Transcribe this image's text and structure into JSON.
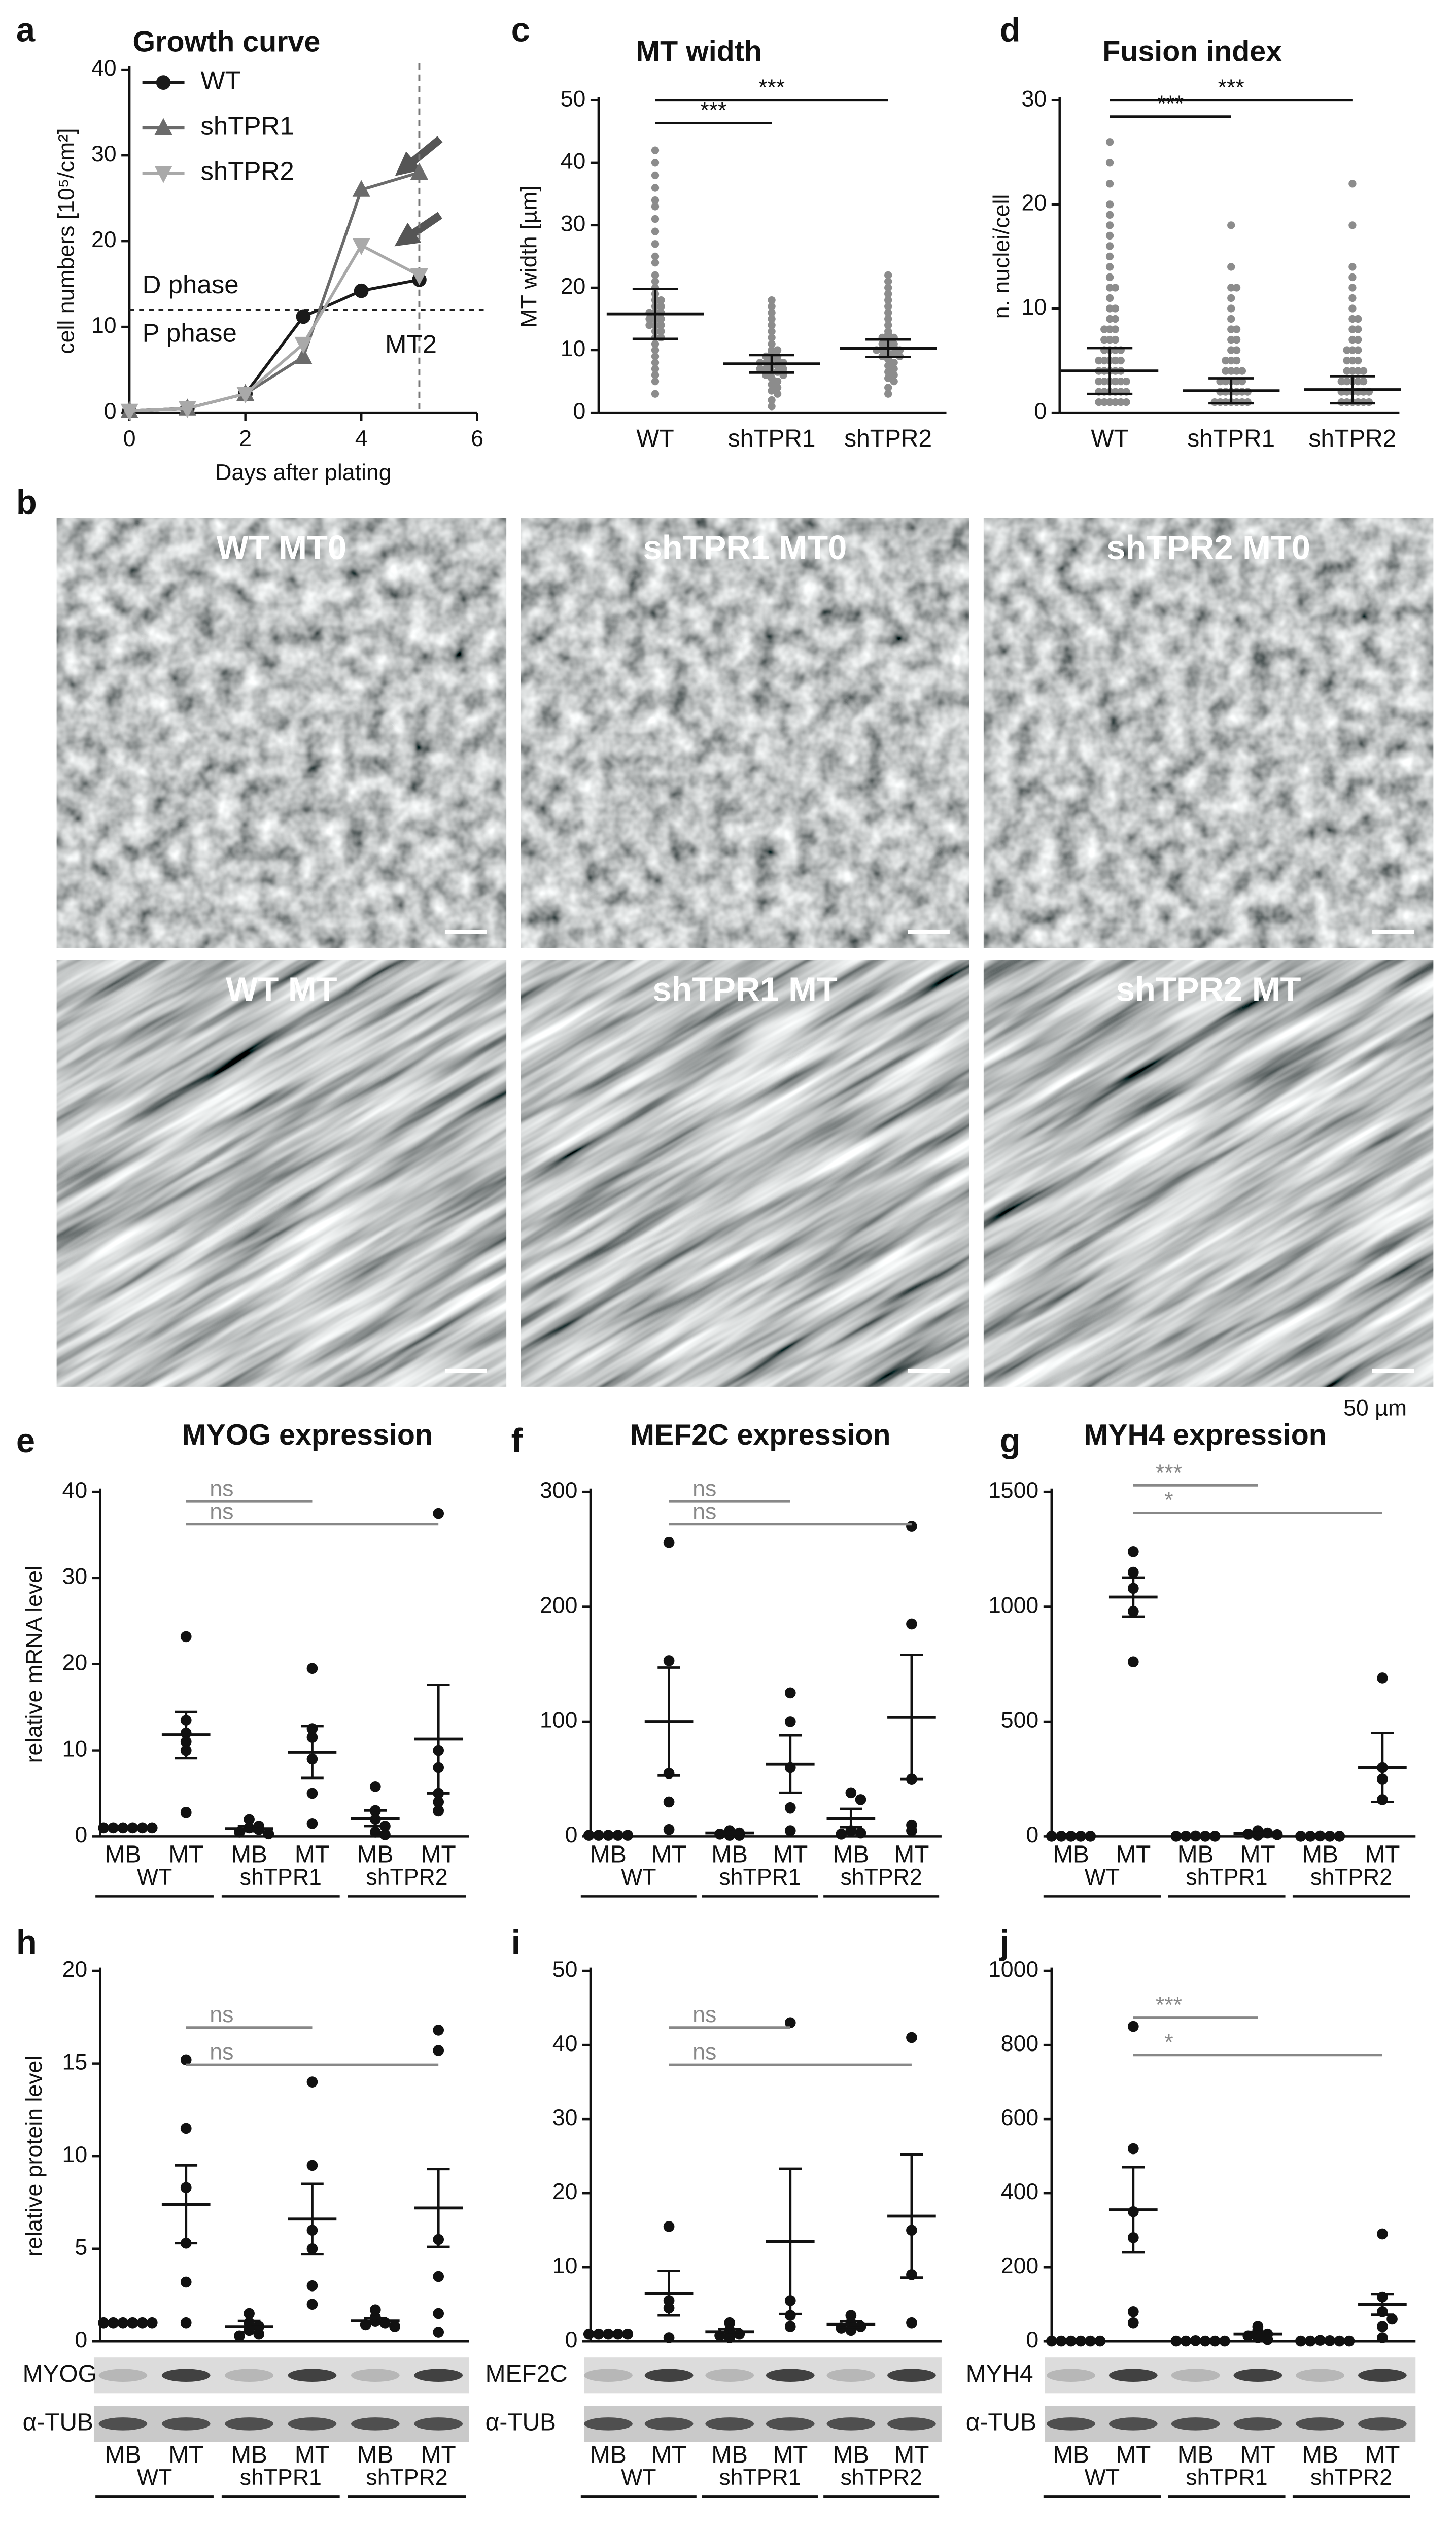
{
  "figure": {
    "panel_letters": [
      "a",
      "b",
      "c",
      "d",
      "e",
      "f",
      "g",
      "h",
      "i",
      "j"
    ],
    "micrographs": [
      "WT MT0",
      "shTPR1 MT0",
      "shTPR2 MT0",
      "WT MT",
      "shTPR1 MT",
      "shTPR2 MT"
    ],
    "scale_bar": "50 µm"
  },
  "chart_data": [
    {
      "type": "line",
      "title": "Growth curve",
      "xlabel": "Days after plating",
      "ylabel": "cell numbers [10⁵/cm²]",
      "x": [
        0,
        1,
        2,
        3,
        4,
        5
      ],
      "series": [
        {
          "name": "WT",
          "color": "#1a1a1a",
          "marker": "circle",
          "values": [
            0.2,
            0.5,
            2.2,
            11.2,
            14.2,
            15.5
          ]
        },
        {
          "name": "shTPR1",
          "color": "#6b6b6b",
          "marker": "triangle-up",
          "values": [
            0.2,
            0.5,
            2.2,
            6.5,
            26,
            28
          ]
        },
        {
          "name": "shTPR2",
          "color": "#a9a9a9",
          "marker": "triangle-down",
          "values": [
            0.2,
            0.5,
            2.2,
            8,
            19.5,
            16
          ]
        }
      ],
      "xlim": [
        0,
        6
      ],
      "xticks": [
        0,
        2,
        4,
        6
      ],
      "ylim": [
        0,
        40
      ],
      "yticks": [
        0,
        10,
        20,
        30,
        40
      ],
      "hline": 12,
      "vline": 5,
      "annotations": [
        "D phase",
        "P phase",
        "MT2"
      ]
    },
    {
      "type": "dot",
      "title": "MT width",
      "ylabel": "MT width [µm]",
      "categories": [
        "WT",
        "shTPR1",
        "shTPR2"
      ],
      "points": [
        [
          42,
          40,
          38,
          36,
          34,
          33,
          31,
          29,
          27,
          25,
          24,
          22,
          21,
          20,
          19,
          18,
          18,
          17,
          17,
          16,
          16,
          16,
          15,
          15,
          15,
          14,
          14,
          14,
          13,
          13,
          12,
          12,
          11,
          10,
          9,
          8,
          7,
          6,
          5,
          3
        ],
        [
          18,
          17,
          16,
          15,
          14,
          13,
          12,
          11,
          10,
          10,
          9.5,
          9,
          9,
          8.5,
          8.5,
          8,
          8,
          8,
          7.5,
          7.5,
          7,
          7,
          7,
          6.5,
          6.5,
          6,
          6,
          5.5,
          5,
          4.5,
          4,
          3.5,
          3,
          2,
          1
        ],
        [
          22,
          21,
          20,
          19,
          18,
          17,
          16,
          15,
          14,
          13,
          12.5,
          12,
          12,
          11.5,
          11,
          11,
          10.5,
          10.5,
          10,
          10,
          10,
          9.5,
          9.5,
          9,
          9,
          8.5,
          8,
          7.5,
          7,
          6.5,
          6,
          5.5,
          5,
          4,
          3
        ]
      ],
      "means": [
        15.8,
        7.8,
        10.3
      ],
      "errors": [
        4,
        1.4,
        1.4
      ],
      "color": "#8c8c8c",
      "ylim": [
        0,
        50
      ],
      "yticks": [
        0,
        10,
        20,
        30,
        40,
        50
      ],
      "significance": [
        "***",
        "***"
      ],
      "significance_color": "#111"
    },
    {
      "type": "dot",
      "title": "Fusion index",
      "ylabel": "n. nuclei/cell",
      "categories": [
        "WT",
        "shTPR1",
        "shTPR2"
      ],
      "points": [
        [
          26,
          24,
          22,
          20,
          19,
          18,
          17,
          16,
          15,
          14,
          13,
          12,
          12,
          11,
          10,
          10,
          9,
          9,
          8,
          8,
          8,
          7,
          7,
          7,
          6,
          6,
          6,
          6,
          5,
          5,
          5,
          5,
          5,
          4,
          4,
          4,
          4,
          4,
          3,
          3,
          3,
          3,
          3,
          3,
          2,
          2,
          2,
          2,
          2,
          2,
          1,
          1,
          1,
          1,
          1,
          1
        ],
        [
          18,
          14,
          12,
          12,
          11,
          10,
          9,
          8,
          8,
          7,
          7,
          6,
          6,
          5,
          5,
          5,
          4,
          4,
          4,
          4,
          3,
          3,
          3,
          3,
          3,
          2,
          2,
          2,
          2,
          2,
          2,
          1,
          1,
          1,
          1,
          1,
          1,
          1
        ],
        [
          22,
          18,
          14,
          13,
          12,
          11,
          10,
          9,
          9,
          8,
          8,
          7,
          7,
          6,
          6,
          6,
          5,
          5,
          5,
          4,
          4,
          4,
          4,
          3,
          3,
          3,
          3,
          3,
          2,
          2,
          2,
          2,
          2,
          2,
          1,
          1,
          1,
          1,
          1,
          1
        ]
      ],
      "means": [
        4,
        2.1,
        2.2
      ],
      "errors": [
        2.2,
        1.2,
        1.3
      ],
      "color": "#8c8c8c",
      "ylim": [
        0,
        30
      ],
      "yticks": [
        0,
        10,
        20,
        30
      ],
      "significance": [
        "***",
        "***"
      ],
      "significance_color": "#111"
    },
    {
      "type": "dot",
      "title": "MYOG expression",
      "ylabel": "relative mRNA level",
      "categories": [
        "MB",
        "MT",
        "MB",
        "MT",
        "MB",
        "MT"
      ],
      "groups": [
        "WT",
        "shTPR1",
        "shTPR2"
      ],
      "points": [
        [
          1,
          1,
          1,
          1,
          1,
          1
        ],
        [
          23.2,
          13.5,
          12,
          11,
          10,
          2.8
        ],
        [
          2,
          1.2,
          1,
          0.8,
          0.5,
          0.3
        ],
        [
          19.5,
          12.5,
          11.5,
          9,
          5,
          1.5
        ],
        [
          5.8,
          3,
          2,
          1.2,
          0.5,
          0.2
        ],
        [
          37.5,
          10,
          8,
          5,
          4,
          3
        ]
      ],
      "means": [
        1,
        11.8,
        0.9,
        9.8,
        2.1,
        11.3
      ],
      "errors": [
        0,
        2.7,
        0.3,
        3,
        0.9,
        6.3
      ],
      "color": "#111",
      "ylim": [
        0,
        40
      ],
      "yticks": [
        0,
        10,
        20,
        30,
        40
      ],
      "significance": [
        "ns",
        "ns"
      ],
      "significance_color": "#888888"
    },
    {
      "type": "dot",
      "title": "MEF2C expression",
      "categories": [
        "MB",
        "MT",
        "MB",
        "MT",
        "MB",
        "MT"
      ],
      "groups": [
        "WT",
        "shTPR1",
        "shTPR2"
      ],
      "points": [
        [
          1,
          1,
          1,
          1,
          1
        ],
        [
          256,
          153,
          55,
          30,
          6
        ],
        [
          5,
          3,
          2,
          1,
          1
        ],
        [
          125,
          100,
          60,
          25,
          5
        ],
        [
          38,
          32,
          5,
          3,
          2
        ],
        [
          270,
          185,
          50,
          10,
          5
        ]
      ],
      "means": [
        1,
        100,
        3,
        63,
        16,
        104
      ],
      "errors": [
        0,
        47,
        1,
        25,
        8,
        54
      ],
      "color": "#111",
      "ylim": [
        0,
        300
      ],
      "yticks": [
        0,
        100,
        200,
        300
      ],
      "significance": [
        "ns",
        "ns"
      ],
      "significance_color": "#888888"
    },
    {
      "type": "dot",
      "title": "MYH4 expression",
      "categories": [
        "MB",
        "MT",
        "MB",
        "MT",
        "MB",
        "MT"
      ],
      "groups": [
        "WT",
        "shTPR1",
        "shTPR2"
      ],
      "points": [
        [
          1,
          1,
          1,
          1,
          1
        ],
        [
          1240,
          1150,
          1080,
          980,
          760
        ],
        [
          2,
          1,
          1,
          1,
          1
        ],
        [
          25,
          15,
          10,
          8,
          5
        ],
        [
          2,
          1,
          1,
          1,
          1
        ],
        [
          690,
          300,
          250,
          160
        ]
      ],
      "means": [
        1,
        1042,
        1,
        13,
        1,
        300
      ],
      "errors": [
        0,
        85,
        0,
        4,
        0,
        150
      ],
      "color": "#111",
      "ylim": [
        0,
        1500
      ],
      "yticks": [
        0,
        500,
        1000,
        1500
      ],
      "significance": [
        "***",
        "*"
      ],
      "significance_color": "#888888"
    },
    {
      "type": "dot",
      "ylabel": "relative protein level",
      "categories": [
        "MB",
        "MT",
        "MB",
        "MT",
        "MB",
        "MT"
      ],
      "groups": [
        "WT",
        "shTPR1",
        "shTPR2"
      ],
      "points": [
        [
          1,
          1,
          1,
          1,
          1,
          1
        ],
        [
          15.2,
          11.5,
          8.3,
          5.3,
          3.2,
          1
        ],
        [
          1.5,
          1,
          0.8,
          0.6,
          0.4,
          0.3
        ],
        [
          14,
          9.5,
          6,
          5,
          3,
          2
        ],
        [
          1.7,
          1.3,
          1.1,
          1,
          0.9,
          0.8
        ],
        [
          16.8,
          15.7,
          5.5,
          3.5,
          1.5,
          0.5
        ]
      ],
      "means": [
        1,
        7.4,
        0.8,
        6.6,
        1.1,
        7.2
      ],
      "errors": [
        0,
        2.1,
        0.3,
        1.9,
        0.15,
        2.1
      ],
      "color": "#111",
      "ylim": [
        0,
        20
      ],
      "yticks": [
        0,
        5,
        10,
        15,
        20
      ],
      "significance": [
        "ns",
        "ns"
      ],
      "significance_color": "#888888",
      "blot_labels": [
        "MYOG",
        "α-TUB"
      ]
    },
    {
      "type": "dot",
      "categories": [
        "MB",
        "MT",
        "MB",
        "MT",
        "MB",
        "MT"
      ],
      "groups": [
        "WT",
        "shTPR1",
        "shTPR2"
      ],
      "points": [
        [
          1,
          1,
          1,
          1,
          1
        ],
        [
          15.5,
          5.5,
          4.5,
          0.5
        ],
        [
          2.5,
          1.5,
          1,
          0.8,
          0.5
        ],
        [
          43,
          5.5,
          3.5,
          2
        ],
        [
          3.5,
          2.5,
          2,
          1.8,
          1.5
        ],
        [
          41,
          15,
          9,
          2.5
        ]
      ],
      "means": [
        1,
        6.5,
        1.3,
        13.5,
        2.3,
        16.9
      ],
      "errors": [
        0,
        3,
        0.4,
        9.8,
        0.4,
        8.3
      ],
      "color": "#111",
      "ylim": [
        0,
        50
      ],
      "yticks": [
        0,
        10,
        20,
        30,
        40,
        50
      ],
      "significance": [
        "ns",
        "ns"
      ],
      "significance_color": "#888888",
      "blot_labels": [
        "MEF2C",
        "α-TUB"
      ]
    },
    {
      "type": "dot",
      "categories": [
        "MB",
        "MT",
        "MB",
        "MT",
        "MB",
        "MT"
      ],
      "groups": [
        "WT",
        "shTPR1",
        "shTPR2"
      ],
      "points": [
        [
          1,
          1,
          1,
          1,
          1,
          1
        ],
        [
          850,
          520,
          350,
          280,
          80,
          50
        ],
        [
          2,
          1,
          1,
          1,
          1,
          1
        ],
        [
          40,
          30,
          20,
          15,
          10,
          5
        ],
        [
          3,
          2,
          1,
          1,
          1,
          1
        ],
        [
          290,
          120,
          80,
          60,
          40,
          10
        ]
      ],
      "means": [
        1,
        355,
        1,
        20,
        1,
        100
      ],
      "errors": [
        0,
        115,
        0,
        6,
        0,
        28
      ],
      "color": "#111",
      "ylim": [
        0,
        1000
      ],
      "yticks": [
        0,
        200,
        400,
        600,
        800,
        1000
      ],
      "significance": [
        "***",
        "*"
      ],
      "significance_color": "#888888",
      "blot_labels": [
        "MYH4",
        "α-TUB"
      ]
    }
  ]
}
